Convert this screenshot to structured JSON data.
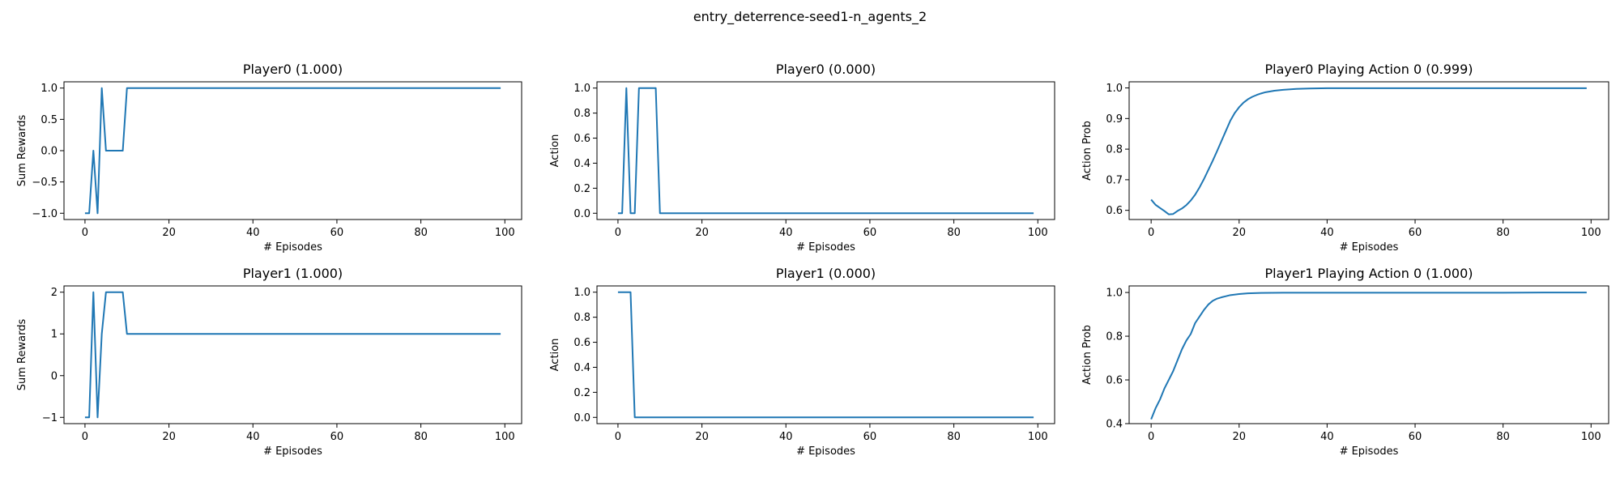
{
  "suptitle": "entry_deterrence-seed1-n_agents_2",
  "line_color": "#1f77b4",
  "chart_data": [
    {
      "type": "line",
      "title": "Player0 (1.000)",
      "xlabel": "# Episodes",
      "ylabel": "Sum Rewards",
      "xlim": [
        -5,
        104
      ],
      "ylim": [
        -1.1,
        1.1
      ],
      "xticks": [
        0,
        20,
        40,
        60,
        80,
        100
      ],
      "yticks": [
        -1.0,
        -0.5,
        0.0,
        0.5,
        1.0
      ],
      "ytick_labels": [
        "−1.0",
        "−0.5",
        "0.0",
        "0.5",
        "1.0"
      ],
      "series": [
        {
          "x": [
            0,
            1,
            2,
            3,
            4,
            5,
            6,
            7,
            8,
            9,
            10,
            99
          ],
          "y": [
            -1,
            -1,
            0,
            -1,
            1,
            0,
            0,
            0,
            0,
            0,
            1,
            1
          ]
        }
      ]
    },
    {
      "type": "line",
      "title": "Player0 (0.000)",
      "xlabel": "# Episodes",
      "ylabel": "Action",
      "xlim": [
        -5,
        104
      ],
      "ylim": [
        -0.05,
        1.05
      ],
      "xticks": [
        0,
        20,
        40,
        60,
        80,
        100
      ],
      "yticks": [
        0.0,
        0.2,
        0.4,
        0.6,
        0.8,
        1.0
      ],
      "ytick_labels": [
        "0.0",
        "0.2",
        "0.4",
        "0.6",
        "0.8",
        "1.0"
      ],
      "series": [
        {
          "x": [
            0,
            1,
            2,
            3,
            4,
            5,
            6,
            7,
            8,
            9,
            10,
            99
          ],
          "y": [
            0,
            0,
            1,
            0,
            0,
            1,
            1,
            1,
            1,
            1,
            0,
            0
          ]
        }
      ]
    },
    {
      "type": "line",
      "title": "Player0 Playing Action 0 (0.999)",
      "xlabel": "# Episodes",
      "ylabel": "Action Prob",
      "xlim": [
        -5,
        104
      ],
      "ylim": [
        0.57,
        1.02
      ],
      "xticks": [
        0,
        20,
        40,
        60,
        80,
        100
      ],
      "yticks": [
        0.6,
        0.7,
        0.8,
        0.9,
        1.0
      ],
      "ytick_labels": [
        "0.6",
        "0.7",
        "0.8",
        "0.9",
        "1.0"
      ],
      "series": [
        {
          "x": [
            0,
            1,
            2,
            3,
            4,
            5,
            6,
            7,
            8,
            9,
            10,
            11,
            12,
            13,
            14,
            15,
            16,
            17,
            18,
            19,
            20,
            21,
            22,
            23,
            24,
            25,
            26,
            28,
            30,
            33,
            36,
            40,
            45,
            50,
            60,
            70,
            80,
            90,
            99
          ],
          "y": [
            0.635,
            0.618,
            0.608,
            0.598,
            0.587,
            0.588,
            0.598,
            0.606,
            0.617,
            0.632,
            0.651,
            0.675,
            0.702,
            0.732,
            0.762,
            0.794,
            0.827,
            0.86,
            0.893,
            0.918,
            0.937,
            0.952,
            0.963,
            0.971,
            0.977,
            0.982,
            0.986,
            0.991,
            0.994,
            0.997,
            0.998,
            0.999,
            0.999,
            0.999,
            0.999,
            0.999,
            0.999,
            0.999,
            0.999
          ]
        }
      ]
    },
    {
      "type": "line",
      "title": "Player1 (1.000)",
      "xlabel": "# Episodes",
      "ylabel": "Sum Rewards",
      "xlim": [
        -5,
        104
      ],
      "ylim": [
        -1.15,
        2.15
      ],
      "xticks": [
        0,
        20,
        40,
        60,
        80,
        100
      ],
      "yticks": [
        -1,
        0,
        1,
        2
      ],
      "ytick_labels": [
        "−1",
        "0",
        "1",
        "2"
      ],
      "series": [
        {
          "x": [
            0,
            1,
            2,
            3,
            4,
            5,
            6,
            7,
            8,
            9,
            10,
            99
          ],
          "y": [
            -1,
            -1,
            2,
            -1,
            1,
            2,
            2,
            2,
            2,
            2,
            1,
            1
          ]
        }
      ]
    },
    {
      "type": "line",
      "title": "Player1 (0.000)",
      "xlabel": "# Episodes",
      "ylabel": "Action",
      "xlim": [
        -5,
        104
      ],
      "ylim": [
        -0.05,
        1.05
      ],
      "xticks": [
        0,
        20,
        40,
        60,
        80,
        100
      ],
      "yticks": [
        0.0,
        0.2,
        0.4,
        0.6,
        0.8,
        1.0
      ],
      "ytick_labels": [
        "0.0",
        "0.2",
        "0.4",
        "0.6",
        "0.8",
        "1.0"
      ],
      "series": [
        {
          "x": [
            0,
            1,
            2,
            3,
            4,
            99
          ],
          "y": [
            1,
            1,
            1,
            1,
            0,
            0
          ]
        }
      ]
    },
    {
      "type": "line",
      "title": "Player1 Playing Action 0 (1.000)",
      "xlabel": "# Episodes",
      "ylabel": "Action Prob",
      "xlim": [
        -5,
        104
      ],
      "ylim": [
        0.4,
        1.03
      ],
      "xticks": [
        0,
        20,
        40,
        60,
        80,
        100
      ],
      "yticks": [
        0.4,
        0.6,
        0.8,
        1.0
      ],
      "ytick_labels": [
        "0.4",
        "0.6",
        "0.8",
        "1.0"
      ],
      "series": [
        {
          "x": [
            0,
            1,
            2,
            3,
            4,
            5,
            6,
            7,
            8,
            9,
            10,
            11,
            12,
            13,
            14,
            15,
            16,
            17,
            18,
            20,
            22,
            25,
            30,
            40,
            50,
            60,
            70,
            80,
            90,
            99
          ],
          "y": [
            0.42,
            0.47,
            0.51,
            0.56,
            0.6,
            0.64,
            0.69,
            0.74,
            0.78,
            0.81,
            0.86,
            0.89,
            0.92,
            0.945,
            0.962,
            0.972,
            0.978,
            0.983,
            0.988,
            0.993,
            0.996,
            0.998,
            0.999,
            0.999,
            0.999,
            0.999,
            0.999,
            0.999,
            1.0,
            1.0
          ]
        }
      ]
    }
  ]
}
